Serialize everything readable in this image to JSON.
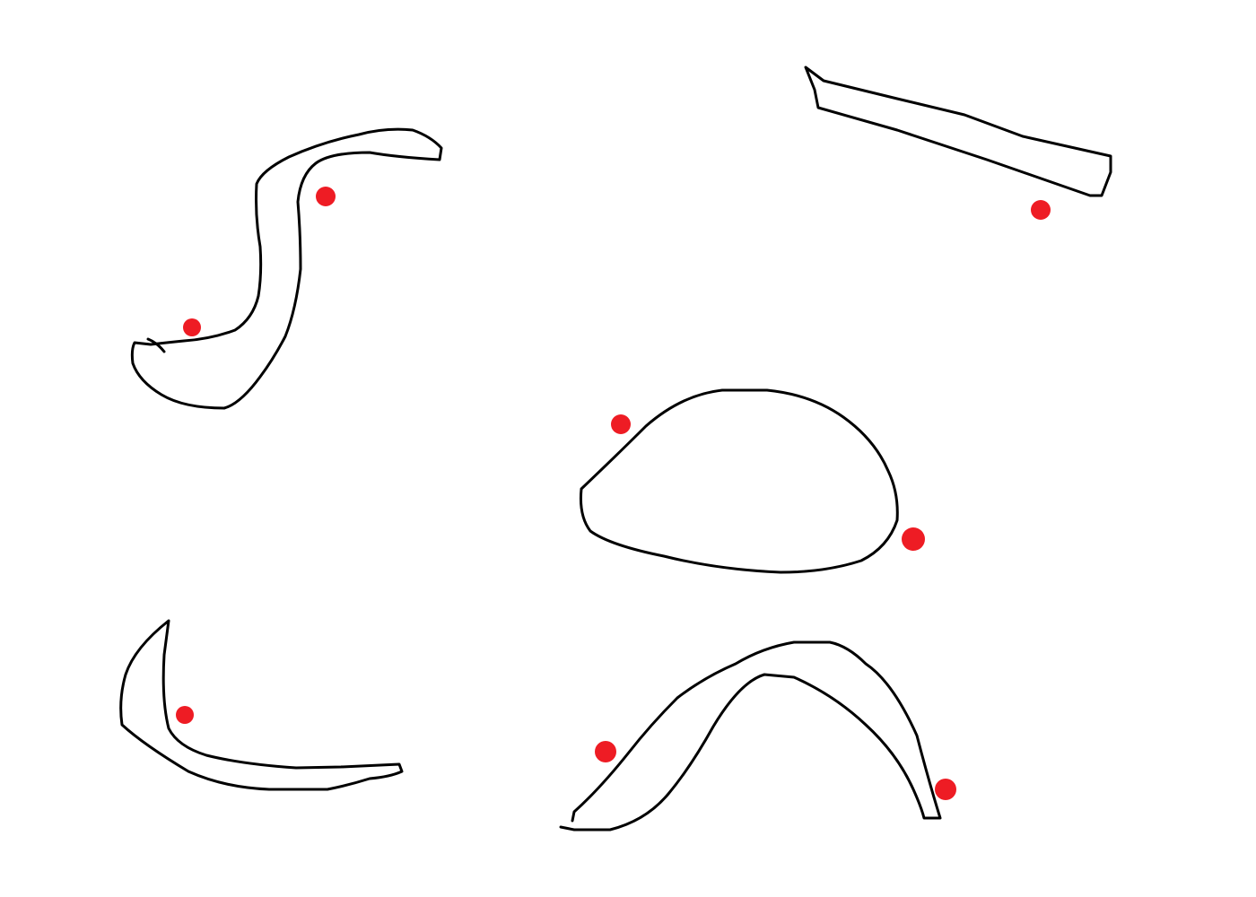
{
  "canvas": {
    "background": "#ffffff"
  },
  "colors": {
    "outline": "#000000",
    "marker": "#ee1c24"
  },
  "shapes": [
    {
      "name": "s-curve-shape",
      "marker_count": 2
    },
    {
      "name": "slanted-bar-shape",
      "marker_count": 1
    },
    {
      "name": "dome-shape",
      "marker_count": 2
    },
    {
      "name": "hook-curve-shape",
      "marker_count": 1
    },
    {
      "name": "arch-shape",
      "marker_count": 2
    }
  ]
}
